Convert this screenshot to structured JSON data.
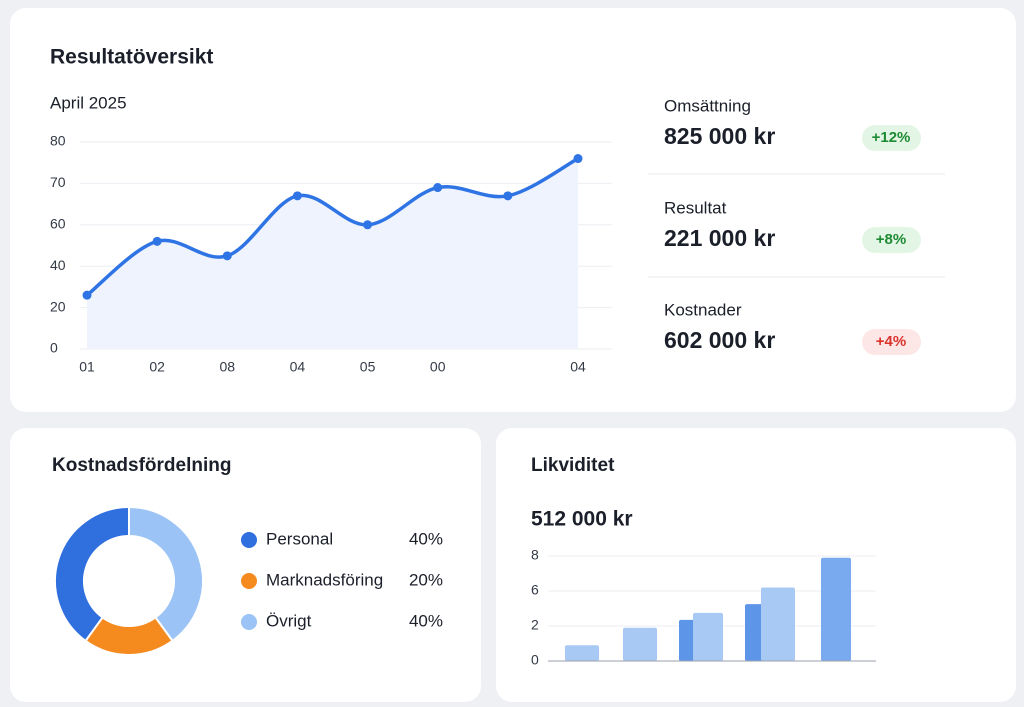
{
  "overview": {
    "title": "Resultatöversikt",
    "subtitle": "April 2025",
    "chart_data": {
      "type": "line",
      "categories": [
        "01",
        "02",
        "08",
        "04",
        "05",
        "00",
        null,
        "04"
      ],
      "values": [
        26,
        52,
        45,
        67,
        60,
        69,
        67,
        76
      ],
      "color": "#2f74e4",
      "area_color": "#eef3fd",
      "ylim": [
        0,
        80
      ],
      "yticks": [
        0,
        20,
        40,
        60,
        70,
        80
      ],
      "grid": true
    }
  },
  "kpis": [
    {
      "label": "Omsättning",
      "value": "825 000 kr",
      "change": "+12%",
      "badge": "positive"
    },
    {
      "label": "Resultat",
      "value": "221 000 kr",
      "change": "+8%",
      "badge": "positive"
    },
    {
      "label": "Kostnader",
      "value": "602 000 kr",
      "change": "+4%",
      "badge": "negative"
    }
  ],
  "costs": {
    "title": "Kostnadsfördelning",
    "chart_data": {
      "type": "donut",
      "categories": [
        "Personal",
        "Marknadsföring",
        "Övrigt"
      ],
      "values": [
        40,
        20,
        40
      ],
      "value_labels": [
        "40%",
        "20%",
        "40%"
      ],
      "colors": [
        "#2f6fde",
        "#f58a1f",
        "#9cc3f5"
      ]
    }
  },
  "liquidity": {
    "title": "Likviditet",
    "value": "512 000 kr",
    "chart_data": {
      "type": "bar",
      "values": [
        0.9,
        1.9,
        2.7,
        3.5,
        4.5,
        6.2,
        7.9
      ],
      "colors": [
        "#a9c9f5",
        "#a9c9f5",
        "#5d95e8",
        "#a9c9f5",
        "#5d95e8",
        "#a9c9f5",
        "#79aaf0"
      ],
      "ylim": [
        0,
        8
      ],
      "yticks": [
        0,
        2,
        6,
        8
      ],
      "grid": true
    }
  }
}
